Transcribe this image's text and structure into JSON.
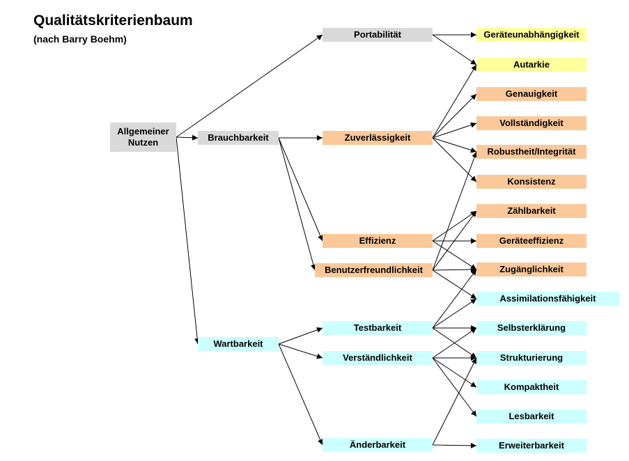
{
  "title": "Qualitätskriterienbaum",
  "subtitle": "(nach Barry Boehm)",
  "colors": {
    "gray": "#d9d9d9",
    "orange": "#fbc89a",
    "yellow": "#fffe9c",
    "cyan": "#ccffff",
    "line": "#000000"
  },
  "nodes": {
    "allgemeiner_nutzen": "Allgemeiner\nNutzen",
    "brauchbarkeit": "Brauchbarkeit",
    "wartbarkeit": "Wartbarkeit",
    "portabilitaet": "Portabilität",
    "zuverlaessigkeit": "Zuverlässigkeit",
    "effizienz": "Effizienz",
    "benutzerfreundlichkeit": "Benutzerfreundlichkeit",
    "testbarkeit": "Testbarkeit",
    "verstaendlichkeit": "Verständlichkeit",
    "aenderbarkeit": "Änderbarkeit",
    "geraeteunabhaengigkeit": "Geräteunabhängigkeit",
    "autarkie": "Autarkie",
    "genauigkeit": "Genauigkeit",
    "vollstaendigkeit": "Vollständigkeit",
    "robustheit": "Robustheit/Integrität",
    "konsistenz": "Konsistenz",
    "zaehlbarkeit": "Zählbarkeit",
    "geraeteeffizienz": "Geräteeffizienz",
    "zugaenglichkeit": "Zugänglichkeit",
    "assimilation": "Assimilationsfähigkeit",
    "selbsterklaerung": "Selbsterklärung",
    "strukturierung": "Strukturierung",
    "kompaktheit": "Kompaktheit",
    "lesbarkeit": "Lesbarkeit",
    "erweiterbarkeit": "Erweiterbarkeit"
  },
  "edges": [
    [
      "allgemeiner_nutzen",
      "portabilitaet"
    ],
    [
      "allgemeiner_nutzen",
      "brauchbarkeit"
    ],
    [
      "allgemeiner_nutzen",
      "wartbarkeit"
    ],
    [
      "brauchbarkeit",
      "zuverlaessigkeit"
    ],
    [
      "brauchbarkeit",
      "effizienz"
    ],
    [
      "brauchbarkeit",
      "benutzerfreundlichkeit"
    ],
    [
      "wartbarkeit",
      "testbarkeit"
    ],
    [
      "wartbarkeit",
      "verstaendlichkeit"
    ],
    [
      "wartbarkeit",
      "aenderbarkeit"
    ],
    [
      "portabilitaet",
      "geraeteunabhaengigkeit"
    ],
    [
      "portabilitaet",
      "autarkie"
    ],
    [
      "zuverlaessigkeit",
      "autarkie"
    ],
    [
      "zuverlaessigkeit",
      "genauigkeit"
    ],
    [
      "zuverlaessigkeit",
      "vollstaendigkeit"
    ],
    [
      "zuverlaessigkeit",
      "robustheit"
    ],
    [
      "zuverlaessigkeit",
      "konsistenz"
    ],
    [
      "effizienz",
      "zaehlbarkeit"
    ],
    [
      "effizienz",
      "geraeteeffizienz"
    ],
    [
      "effizienz",
      "zugaenglichkeit"
    ],
    [
      "benutzerfreundlichkeit",
      "robustheit"
    ],
    [
      "benutzerfreundlichkeit",
      "zaehlbarkeit"
    ],
    [
      "benutzerfreundlichkeit",
      "zugaenglichkeit"
    ],
    [
      "benutzerfreundlichkeit",
      "assimilation"
    ],
    [
      "testbarkeit",
      "assimilation"
    ],
    [
      "testbarkeit",
      "selbsterklaerung"
    ],
    [
      "testbarkeit",
      "strukturierung"
    ],
    [
      "testbarkeit",
      "zugaenglichkeit"
    ],
    [
      "verstaendlichkeit",
      "selbsterklaerung"
    ],
    [
      "verstaendlichkeit",
      "strukturierung"
    ],
    [
      "verstaendlichkeit",
      "kompaktheit"
    ],
    [
      "verstaendlichkeit",
      "lesbarkeit"
    ],
    [
      "aenderbarkeit",
      "strukturierung"
    ],
    [
      "aenderbarkeit",
      "erweiterbarkeit"
    ]
  ]
}
